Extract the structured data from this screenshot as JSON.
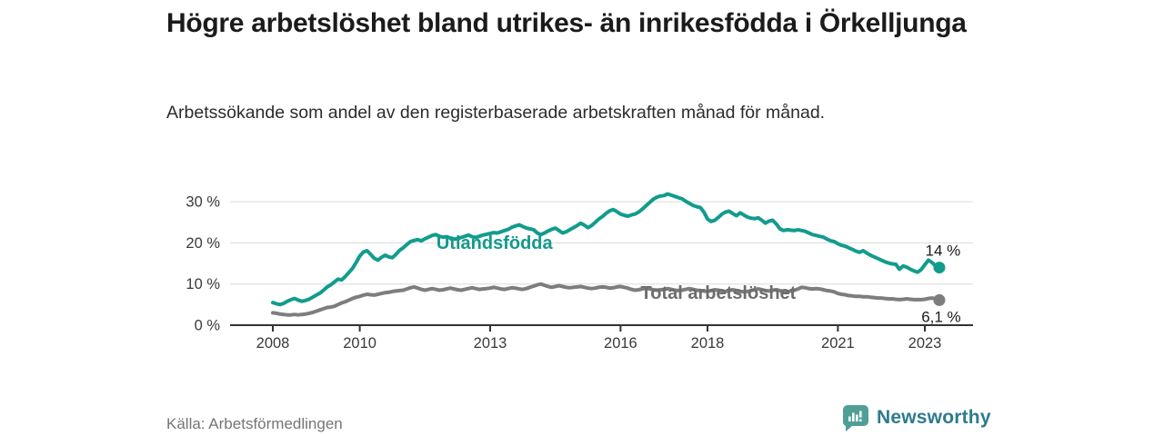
{
  "header": {
    "title": "Högre arbetslöshet bland utrikes- än inrikesfödda i Örkelljunga",
    "subtitle": "Arbetssökande som andel av den registerbaserade arbetskraften månad för månad."
  },
  "footer": {
    "source": "Källa: Arbetsförmedlingen",
    "brand": "Newsworthy"
  },
  "colors": {
    "accent_teal": "#129c8d",
    "line_gray": "#7d7d7d",
    "grid": "#dcdcdc",
    "axis": "#333333",
    "axis_text": "#3a3a3a",
    "end_label_text": "#1a1a1a",
    "brand_teal": "#2e7b8e",
    "brand_icon_teal": "#4f9f97"
  },
  "chart_data": {
    "type": "line",
    "title": "Högre arbetslöshet bland utrikes- än inrikesfödda i Örkelljunga",
    "subtitle": "Arbetssökande som andel av den registerbaserade arbetskraften månad för månad.",
    "x_start_year": 2008,
    "frequency": "monthly",
    "x_ticks": [
      2008,
      2010,
      2013,
      2016,
      2018,
      2021,
      2023
    ],
    "y_ticks": [
      {
        "value": 0,
        "label": "0 %"
      },
      {
        "value": 10,
        "label": "10 %"
      },
      {
        "value": 20,
        "label": "20 %"
      },
      {
        "value": 30,
        "label": "30 %"
      }
    ],
    "ylim": [
      0,
      33
    ],
    "grid": true,
    "legend_position": "inline-labels",
    "series": [
      {
        "name": "Utlandsfödda",
        "color": "#129c8d",
        "label_color": "#13998c",
        "end_label": "14 %",
        "label_anchor": {
          "year": 2013.1,
          "value": 20.1
        },
        "values": [
          5.5,
          5.2,
          5.0,
          5.3,
          5.8,
          6.2,
          6.5,
          6.1,
          5.8,
          6.0,
          6.3,
          6.8,
          7.3,
          7.8,
          8.5,
          9.3,
          9.8,
          10.5,
          11.2,
          11.0,
          11.8,
          12.8,
          13.8,
          15.2,
          16.8,
          17.8,
          18.1,
          17.2,
          16.3,
          15.8,
          16.5,
          17.0,
          16.6,
          16.4,
          17.2,
          18.2,
          18.8,
          19.6,
          20.3,
          20.6,
          20.8,
          20.5,
          21.0,
          21.4,
          21.8,
          22.0,
          21.6,
          21.4,
          21.5,
          21.2,
          20.9,
          21.0,
          21.3,
          21.6,
          21.9,
          21.5,
          21.3,
          21.6,
          21.9,
          22.1,
          22.3,
          22.5,
          22.4,
          22.7,
          23.0,
          23.3,
          23.8,
          24.1,
          24.4,
          24.0,
          23.6,
          23.4,
          23.2,
          22.4,
          22.0,
          22.4,
          22.9,
          23.3,
          23.6,
          23.0,
          22.4,
          22.7,
          23.2,
          23.7,
          24.2,
          24.8,
          24.3,
          23.7,
          24.2,
          25.0,
          25.8,
          26.4,
          27.2,
          27.8,
          28.1,
          27.6,
          27.0,
          26.7,
          26.5,
          26.8,
          27.0,
          27.5,
          28.2,
          29.0,
          29.8,
          30.6,
          31.1,
          31.4,
          31.5,
          31.9,
          31.6,
          31.3,
          31.0,
          30.7,
          30.1,
          29.6,
          29.1,
          28.8,
          28.6,
          27.5,
          25.8,
          25.2,
          25.5,
          26.2,
          27.0,
          27.5,
          27.7,
          27.1,
          26.6,
          27.3,
          26.8,
          26.3,
          26.0,
          25.9,
          26.1,
          25.5,
          24.8,
          25.3,
          25.5,
          24.6,
          23.4,
          23.0,
          23.2,
          23.1,
          23.0,
          23.2,
          23.0,
          22.8,
          22.4,
          22.0,
          21.8,
          21.6,
          21.4,
          20.9,
          20.5,
          20.3,
          19.8,
          19.4,
          19.2,
          18.8,
          18.4,
          18.0,
          17.7,
          18.1,
          17.5,
          17.0,
          16.6,
          16.2,
          15.8,
          15.4,
          15.1,
          14.9,
          14.8,
          13.6,
          14.4,
          14.1,
          13.6,
          13.2,
          12.9,
          13.5,
          14.7,
          15.8,
          15.2,
          14.4,
          14.0
        ]
      },
      {
        "name": "Total arbetslöshet",
        "color": "#7d7d7d",
        "label_color": "#6d6d6d",
        "end_label": "6,1 %",
        "label_anchor": {
          "year": 2018.25,
          "value": 7.95
        },
        "values": [
          3.0,
          2.9,
          2.7,
          2.6,
          2.5,
          2.5,
          2.6,
          2.5,
          2.6,
          2.7,
          2.9,
          3.1,
          3.4,
          3.7,
          4.0,
          4.3,
          4.4,
          4.6,
          5.0,
          5.4,
          5.7,
          6.1,
          6.5,
          6.8,
          7.0,
          7.3,
          7.5,
          7.4,
          7.3,
          7.5,
          7.7,
          7.9,
          8.0,
          8.2,
          8.3,
          8.4,
          8.5,
          8.8,
          9.1,
          9.3,
          9.0,
          8.7,
          8.5,
          8.7,
          8.9,
          8.7,
          8.5,
          8.6,
          8.8,
          9.0,
          8.8,
          8.6,
          8.5,
          8.7,
          8.9,
          9.1,
          8.9,
          8.7,
          8.8,
          8.9,
          9.0,
          9.2,
          9.0,
          8.8,
          8.7,
          8.9,
          9.1,
          9.0,
          8.8,
          8.7,
          8.9,
          9.2,
          9.5,
          9.8,
          10.0,
          9.7,
          9.4,
          9.2,
          9.4,
          9.6,
          9.4,
          9.2,
          9.1,
          9.2,
          9.3,
          9.4,
          9.2,
          9.0,
          8.9,
          9.0,
          9.2,
          9.3,
          9.2,
          9.0,
          9.1,
          9.3,
          9.4,
          9.2,
          9.0,
          8.7,
          8.5,
          8.6,
          8.8,
          9.0,
          8.8,
          8.6,
          8.5,
          8.6,
          8.7,
          8.9,
          8.7,
          8.5,
          8.4,
          8.5,
          8.7,
          8.9,
          8.7,
          8.5,
          8.4,
          8.3,
          8.2,
          8.4,
          8.6,
          8.5,
          8.3,
          8.2,
          8.4,
          8.6,
          8.4,
          8.2,
          8.1,
          8.2,
          8.4,
          8.6,
          8.8,
          8.6,
          8.4,
          8.3,
          8.5,
          8.6,
          8.4,
          8.2,
          8.1,
          8.3,
          8.5,
          8.8,
          9.2,
          9.1,
          8.9,
          8.8,
          8.9,
          8.8,
          8.6,
          8.4,
          8.3,
          8.1,
          7.7,
          7.5,
          7.4,
          7.2,
          7.1,
          7.0,
          7.0,
          6.9,
          6.9,
          6.8,
          6.7,
          6.6,
          6.6,
          6.5,
          6.4,
          6.4,
          6.3,
          6.2,
          6.3,
          6.4,
          6.3,
          6.2,
          6.2,
          6.2,
          6.3,
          6.5,
          6.6,
          6.4,
          6.1
        ]
      }
    ]
  }
}
